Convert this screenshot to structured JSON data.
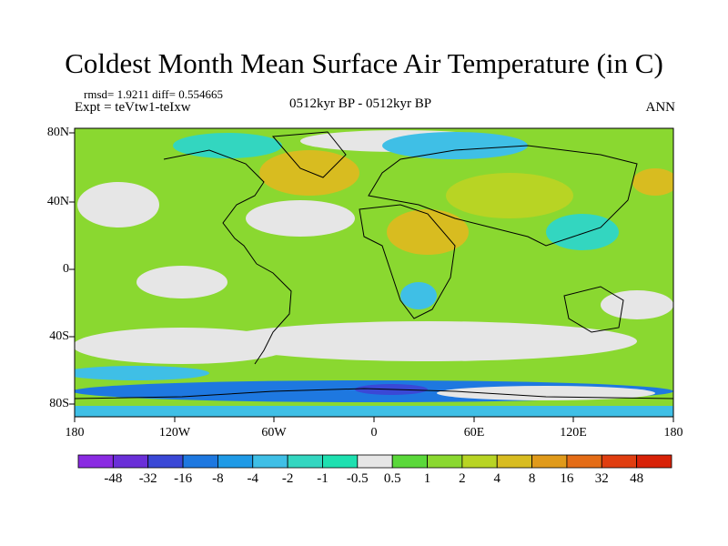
{
  "title": "Coldest Month Mean Surface Air Temperature (in C)",
  "stats": "rmsd= 1.9211 diff= 0.554665",
  "experiment": "Expt = teVtw1-teIxw",
  "period": "0512kyr BP - 0512kyr BP",
  "season": "ANN",
  "lat_ticks": [
    "80N",
    "40N",
    "0",
    "40S",
    "80S"
  ],
  "lon_ticks": [
    "180",
    "120W",
    "60W",
    "0",
    "60E",
    "120E",
    "180"
  ],
  "colorbar": {
    "labels": [
      "-48",
      "-32",
      "-16",
      "-8",
      "-4",
      "-2",
      "-1",
      "-0.5",
      "0.5",
      "1",
      "2",
      "4",
      "8",
      "16",
      "32",
      "48"
    ],
    "colors": [
      "#8a2be2",
      "#6a2fd8",
      "#3a48d6",
      "#1e78e0",
      "#1f9ae6",
      "#3fbfe6",
      "#33d6c0",
      "#1ee0b0",
      "#e6e6e6",
      "#5ad83a",
      "#8ad830",
      "#b8d424",
      "#d8bc20",
      "#e09a1a",
      "#e46c16",
      "#e03e10",
      "#d82208"
    ]
  }
}
